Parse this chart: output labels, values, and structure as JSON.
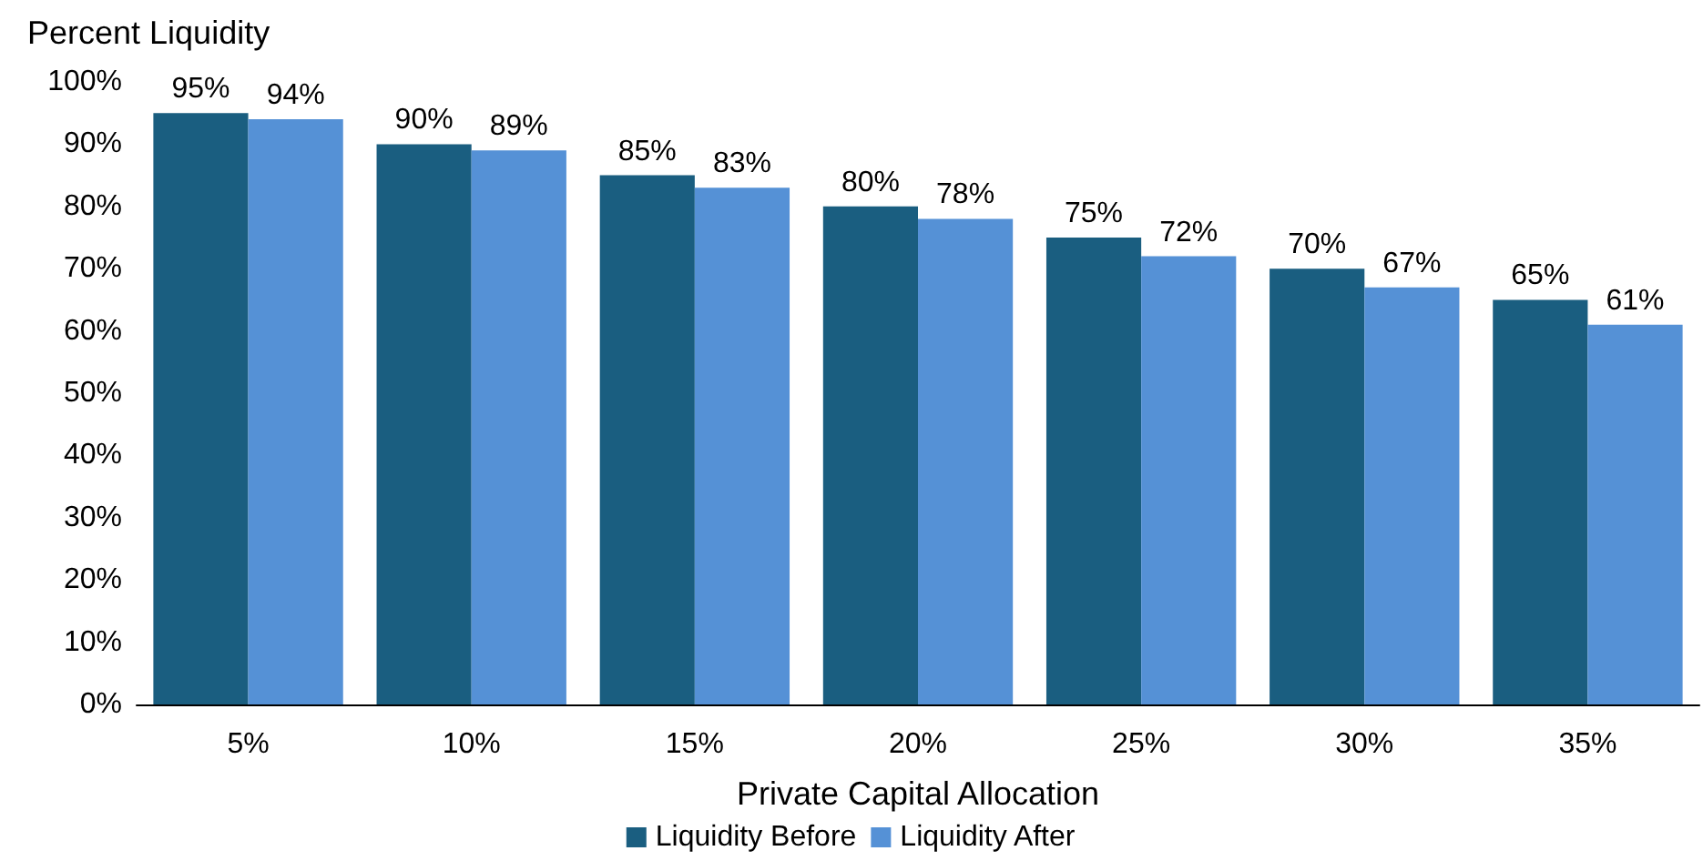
{
  "chart_data": {
    "type": "bar",
    "ylabel": "Percent Liquidity",
    "xlabel": "Private Capital Allocation",
    "categories": [
      "5%",
      "10%",
      "15%",
      "20%",
      "25%",
      "30%",
      "35%"
    ],
    "series": [
      {
        "name": "Liquidity Before",
        "color": "#1a5e80",
        "values": [
          95,
          90,
          85,
          80,
          75,
          70,
          65
        ],
        "value_labels": [
          "95%",
          "90%",
          "85%",
          "80%",
          "75%",
          "70%",
          "65%"
        ]
      },
      {
        "name": "Liquidity After",
        "color": "#5591d6",
        "values": [
          94,
          89,
          83,
          78,
          72,
          67,
          61
        ],
        "value_labels": [
          "94%",
          "89%",
          "83%",
          "78%",
          "72%",
          "67%",
          "61%"
        ]
      }
    ],
    "ylim": [
      0,
      100
    ],
    "yticks": [
      {
        "value": 0,
        "label": "0%"
      },
      {
        "value": 10,
        "label": "10%"
      },
      {
        "value": 20,
        "label": "20%"
      },
      {
        "value": 30,
        "label": "30%"
      },
      {
        "value": 40,
        "label": "40%"
      },
      {
        "value": 50,
        "label": "50%"
      },
      {
        "value": 60,
        "label": "60%"
      },
      {
        "value": 70,
        "label": "70%"
      },
      {
        "value": 80,
        "label": "80%"
      },
      {
        "value": 90,
        "label": "90%"
      },
      {
        "value": 100,
        "label": "100%"
      }
    ],
    "grid": false,
    "legend": "bottom"
  }
}
